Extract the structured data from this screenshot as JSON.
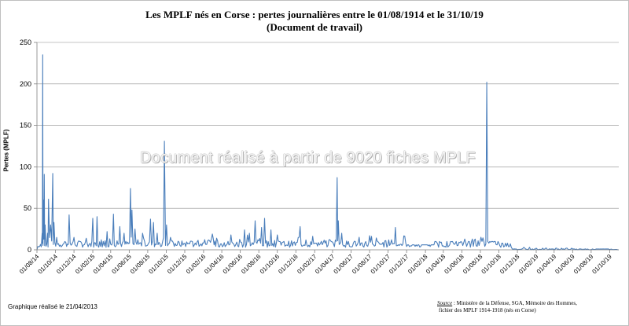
{
  "chart_data": {
    "type": "line",
    "title_line1": "Les MPLF nés en Corse : pertes journalières entre le 01/08/1914 et le 31/10/19",
    "title_line2": "(Document de travail)",
    "ylabel": "Pertes (MPLF)",
    "xlabel": "",
    "ylim": [
      0,
      250
    ],
    "y_ticks": [
      0,
      50,
      100,
      150,
      200,
      250
    ],
    "x_tick_labels": [
      "01/08/14",
      "01/10/14",
      "01/12/14",
      "01/02/15",
      "01/04/15",
      "01/06/15",
      "01/08/15",
      "01/10/15",
      "01/12/15",
      "01/02/16",
      "01/04/16",
      "01/06/16",
      "01/08/16",
      "01/10/16",
      "01/12/16",
      "01/02/17",
      "01/04/17",
      "01/06/17",
      "01/08/17",
      "01/10/17",
      "01/12/17",
      "01/02/18",
      "01/04/18",
      "01/06/18",
      "01/08/18",
      "01/10/18",
      "01/12/18",
      "01/02/19",
      "01/04/19",
      "01/06/19",
      "01/08/19",
      "01/10/19"
    ],
    "grid": true,
    "legend": "none",
    "series_color": "#4a7ebb",
    "peaks": [
      {
        "x": "01/08/14",
        "y": 0
      },
      {
        "x": "10/08/14",
        "y": 4
      },
      {
        "x": "18/08/14",
        "y": 20
      },
      {
        "x": "20/08/14",
        "y": 235
      },
      {
        "x": "22/08/14",
        "y": 60
      },
      {
        "x": "25/08/14",
        "y": 91
      },
      {
        "x": "28/08/14",
        "y": 30
      },
      {
        "x": "05/09/14",
        "y": 20
      },
      {
        "x": "08/09/14",
        "y": 61
      },
      {
        "x": "15/09/14",
        "y": 30
      },
      {
        "x": "22/09/14",
        "y": 92
      },
      {
        "x": "26/09/14",
        "y": 33
      },
      {
        "x": "05/10/14",
        "y": 15
      },
      {
        "x": "01/11/14",
        "y": 10
      },
      {
        "x": "15/11/14",
        "y": 42
      },
      {
        "x": "01/12/14",
        "y": 15
      },
      {
        "x": "20/12/14",
        "y": 10
      },
      {
        "x": "01/02/15",
        "y": 38
      },
      {
        "x": "15/02/15",
        "y": 40
      },
      {
        "x": "01/03/15",
        "y": 12
      },
      {
        "x": "20/03/15",
        "y": 22
      },
      {
        "x": "10/04/15",
        "y": 43
      },
      {
        "x": "01/05/15",
        "y": 28
      },
      {
        "x": "15/05/15",
        "y": 20
      },
      {
        "x": "05/06/15",
        "y": 74
      },
      {
        "x": "10/06/15",
        "y": 48
      },
      {
        "x": "20/06/15",
        "y": 25
      },
      {
        "x": "15/07/15",
        "y": 20
      },
      {
        "x": "10/08/15",
        "y": 37
      },
      {
        "x": "20/08/15",
        "y": 33
      },
      {
        "x": "01/09/15",
        "y": 20
      },
      {
        "x": "25/09/15",
        "y": 131
      },
      {
        "x": "02/10/15",
        "y": 30
      },
      {
        "x": "15/10/15",
        "y": 15
      },
      {
        "x": "01/12/15",
        "y": 8
      },
      {
        "x": "01/03/16",
        "y": 19
      },
      {
        "x": "15/03/16",
        "y": 14
      },
      {
        "x": "01/05/16",
        "y": 18
      },
      {
        "x": "15/06/16",
        "y": 24
      },
      {
        "x": "01/07/16",
        "y": 20
      },
      {
        "x": "20/07/16",
        "y": 35
      },
      {
        "x": "10/08/16",
        "y": 27
      },
      {
        "x": "20/08/16",
        "y": 38
      },
      {
        "x": "10/09/16",
        "y": 24
      },
      {
        "x": "01/10/16",
        "y": 18
      },
      {
        "x": "15/12/16",
        "y": 28
      },
      {
        "x": "01/02/17",
        "y": 8
      },
      {
        "x": "20/03/17",
        "y": 12
      },
      {
        "x": "16/04/17",
        "y": 87
      },
      {
        "x": "20/04/17",
        "y": 35
      },
      {
        "x": "01/05/17",
        "y": 20
      },
      {
        "x": "15/06/17",
        "y": 10
      },
      {
        "x": "01/08/17",
        "y": 17
      },
      {
        "x": "25/10/17",
        "y": 27
      },
      {
        "x": "01/12/17",
        "y": 4
      },
      {
        "x": "01/03/18",
        "y": 6
      },
      {
        "x": "01/05/18",
        "y": 10
      },
      {
        "x": "01/06/18",
        "y": 9
      },
      {
        "x": "15/07/18",
        "y": 13
      },
      {
        "x": "22/08/18",
        "y": 202
      },
      {
        "x": "01/09/18",
        "y": 10
      },
      {
        "x": "01/10/18",
        "y": 8
      },
      {
        "x": "11/11/18",
        "y": 3
      },
      {
        "x": "01/02/19",
        "y": 2
      },
      {
        "x": "01/06/19",
        "y": 1
      },
      {
        "x": "31/10/19",
        "y": 0
      }
    ]
  },
  "watermark": "Document réalisé à partir de 9020 fiches MPLF",
  "footer": {
    "created": "Graphique réalisé le 21/04/2013",
    "source_label": "Source",
    "source_line1": " : Ministère de la Défense, SGA, Mémoire des Hommes,",
    "source_line2": "fichier des MPLF 1914-1918 (nés en Corse)"
  }
}
